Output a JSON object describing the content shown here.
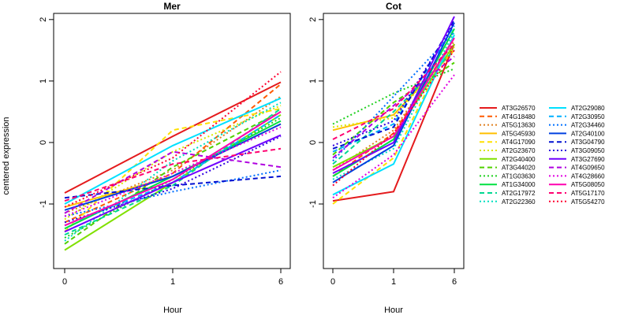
{
  "chart_data": {
    "type": "line",
    "ylabel": "centered expression",
    "xlabel": "Hour",
    "x": [
      "0",
      "1",
      "6"
    ],
    "ylim": [
      -2.05,
      2.1
    ],
    "yticks": [
      -1,
      0,
      1,
      2
    ],
    "grid": false,
    "legend_position": "right",
    "panels": [
      {
        "title": "Mer",
        "series": [
          {
            "name": "AT3G26570",
            "values": [
              -0.82,
              0.1,
              0.98
            ]
          },
          {
            "name": "AT4G18480",
            "values": [
              -1.3,
              -0.5,
              0.95
            ]
          },
          {
            "name": "AT5G13630",
            "values": [
              -1.15,
              -0.45,
              0.75
            ]
          },
          {
            "name": "AT5G45930",
            "values": [
              -1.05,
              -0.55,
              0.3
            ]
          },
          {
            "name": "AT4G17090",
            "values": [
              -1.45,
              0.2,
              0.55
            ]
          },
          {
            "name": "AT2G23670",
            "values": [
              -1.25,
              -0.15,
              0.6
            ]
          },
          {
            "name": "AT2G40400",
            "values": [
              -1.75,
              -0.65,
              0.45
            ]
          },
          {
            "name": "AT3G44020",
            "values": [
              -1.65,
              -0.4,
              0.5
            ]
          },
          {
            "name": "AT1G03630",
            "values": [
              -1.55,
              -0.6,
              0.4
            ]
          },
          {
            "name": "AT1G34000",
            "values": [
              -1.4,
              -0.55,
              0.35
            ]
          },
          {
            "name": "AT2G17972",
            "values": [
              -1.5,
              -0.7,
              0.55
            ]
          },
          {
            "name": "AT2G22360",
            "values": [
              -1.6,
              -0.3,
              0.65
            ]
          },
          {
            "name": "AT2G29080",
            "values": [
              -1.0,
              -0.05,
              0.72
            ]
          },
          {
            "name": "AT2G30950",
            "values": [
              -1.35,
              -0.65,
              0.45
            ]
          },
          {
            "name": "AT2G34460",
            "values": [
              -1.2,
              -0.8,
              -0.45
            ]
          },
          {
            "name": "AT2G40100",
            "values": [
              -1.1,
              -0.55,
              0.3
            ]
          },
          {
            "name": "AT3G04790",
            "values": [
              -0.9,
              -0.7,
              -0.55
            ]
          },
          {
            "name": "AT3G09050",
            "values": [
              -1.3,
              -0.75,
              0.1
            ]
          },
          {
            "name": "AT3G27690",
            "values": [
              -1.45,
              -0.65,
              0.12
            ]
          },
          {
            "name": "AT4G09650",
            "values": [
              -1.15,
              -0.15,
              -0.4
            ]
          },
          {
            "name": "AT4G28660",
            "values": [
              -1.2,
              -0.5,
              0.25
            ]
          },
          {
            "name": "AT5G08050",
            "values": [
              -1.35,
              -0.6,
              0.5
            ]
          },
          {
            "name": "AT5G17170",
            "values": [
              -0.95,
              -0.35,
              -0.1
            ]
          },
          {
            "name": "AT5G54270",
            "values": [
              -1.05,
              -0.25,
              1.15
            ]
          }
        ]
      },
      {
        "title": "Cot",
        "series": [
          {
            "name": "AT3G26570",
            "values": [
              -0.95,
              -0.8,
              1.6
            ]
          },
          {
            "name": "AT4G18480",
            "values": [
              -0.55,
              0.15,
              1.7
            ]
          },
          {
            "name": "AT5G13630",
            "values": [
              -0.45,
              0.2,
              1.65
            ]
          },
          {
            "name": "AT5G45930",
            "values": [
              0.2,
              0.45,
              1.5
            ]
          },
          {
            "name": "AT4G17090",
            "values": [
              -1.0,
              -0.25,
              1.75
            ]
          },
          {
            "name": "AT2G23670",
            "values": [
              0.25,
              0.4,
              1.55
            ]
          },
          {
            "name": "AT2G40400",
            "values": [
              -0.4,
              0.1,
              1.6
            ]
          },
          {
            "name": "AT3G44020",
            "values": [
              -0.2,
              0.65,
              1.3
            ]
          },
          {
            "name": "AT1G03630",
            "values": [
              0.3,
              0.8,
              1.2
            ]
          },
          {
            "name": "AT1G34000",
            "values": [
              -0.55,
              0.05,
              1.85
            ]
          },
          {
            "name": "AT2G17972",
            "values": [
              -0.35,
              0.5,
              1.5
            ]
          },
          {
            "name": "AT2G22360",
            "values": [
              -0.6,
              -0.1,
              1.8
            ]
          },
          {
            "name": "AT2G29080",
            "values": [
              -0.85,
              -0.35,
              1.75
            ]
          },
          {
            "name": "AT2G30950",
            "values": [
              -0.15,
              0.3,
              1.9
            ]
          },
          {
            "name": "AT2G34460",
            "values": [
              -0.3,
              0.75,
              1.8
            ]
          },
          {
            "name": "AT2G40100",
            "values": [
              -0.65,
              -0.05,
              1.95
            ]
          },
          {
            "name": "AT3G04790",
            "values": [
              -0.1,
              0.25,
              2.0
            ]
          },
          {
            "name": "AT3G09050",
            "values": [
              -0.05,
              0.35,
              1.95
            ]
          },
          {
            "name": "AT3G27690",
            "values": [
              -0.5,
              0.0,
              2.05
            ]
          },
          {
            "name": "AT4G09650",
            "values": [
              -0.25,
              0.6,
              1.4
            ]
          },
          {
            "name": "AT4G28660",
            "values": [
              -0.9,
              -0.2,
              1.1
            ]
          },
          {
            "name": "AT5G08050",
            "values": [
              -0.45,
              0.1,
              1.7
            ]
          },
          {
            "name": "AT5G17170",
            "values": [
              0.05,
              0.55,
              1.6
            ]
          },
          {
            "name": "AT5G54270",
            "values": [
              -0.7,
              0.15,
              1.5
            ]
          }
        ]
      }
    ]
  },
  "legend": {
    "items": [
      {
        "name": "AT3G26570",
        "color": "#e41a1c",
        "dash": "solid"
      },
      {
        "name": "AT4G18480",
        "color": "#ff5a00",
        "dash": "dashed"
      },
      {
        "name": "AT5G13630",
        "color": "#e08020",
        "dash": "dotted"
      },
      {
        "name": "AT5G45930",
        "color": "#ffbf00",
        "dash": "solid"
      },
      {
        "name": "AT4G17090",
        "color": "#ffe000",
        "dash": "dashed"
      },
      {
        "name": "AT2G23670",
        "color": "#d8e800",
        "dash": "dotted"
      },
      {
        "name": "AT2G40400",
        "color": "#80e000",
        "dash": "solid"
      },
      {
        "name": "AT3G44020",
        "color": "#50d000",
        "dash": "dashed"
      },
      {
        "name": "AT1G03630",
        "color": "#20d020",
        "dash": "dotted"
      },
      {
        "name": "AT1G34000",
        "color": "#00e040",
        "dash": "solid"
      },
      {
        "name": "AT2G17972",
        "color": "#00d890",
        "dash": "dashed"
      },
      {
        "name": "AT2G22360",
        "color": "#00e0c0",
        "dash": "dotted"
      },
      {
        "name": "AT2G29080",
        "color": "#00e0ff",
        "dash": "solid"
      },
      {
        "name": "AT2G30950",
        "color": "#00b0ff",
        "dash": "dashed"
      },
      {
        "name": "AT2G34460",
        "color": "#0070ff",
        "dash": "dotted"
      },
      {
        "name": "AT2G40100",
        "color": "#0040e0",
        "dash": "solid"
      },
      {
        "name": "AT3G04790",
        "color": "#0010d0",
        "dash": "dashed"
      },
      {
        "name": "AT3G09050",
        "color": "#3000e0",
        "dash": "dotted"
      },
      {
        "name": "AT3G27690",
        "color": "#7000ff",
        "dash": "solid"
      },
      {
        "name": "AT4G09650",
        "color": "#b000e0",
        "dash": "dashed"
      },
      {
        "name": "AT4G28660",
        "color": "#e000e0",
        "dash": "dotted"
      },
      {
        "name": "AT5G08050",
        "color": "#ff00b0",
        "dash": "solid"
      },
      {
        "name": "AT5G17170",
        "color": "#ff0070",
        "dash": "dashed"
      },
      {
        "name": "AT5G54270",
        "color": "#ff0030",
        "dash": "dotted"
      }
    ]
  }
}
